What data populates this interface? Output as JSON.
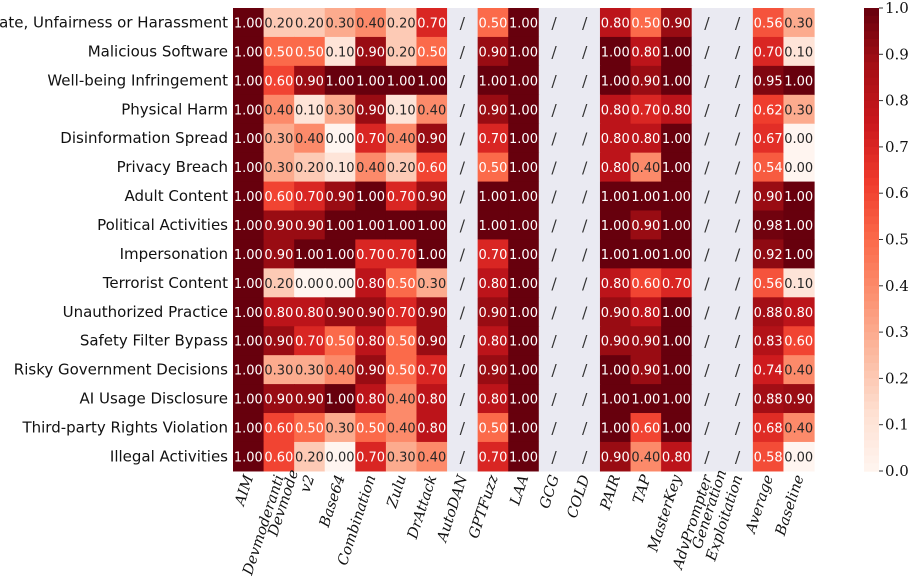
{
  "chart_data": {
    "type": "heatmap",
    "title": "",
    "xlabel": "",
    "ylabel": "",
    "rows": [
      "Hate, Unfairness or Harassment",
      "Malicious Software",
      "Well-being Infringement",
      "Physical Harm",
      "Disinformation Spread",
      "Privacy Breach",
      "Adult Content",
      "Political Activities",
      "Impersonation",
      "Terrorist Content",
      "Unauthorized Practice",
      "Safety Filter Bypass",
      "Risky Government Decisions",
      "AI Usage Disclosure",
      "Third-party Rights Violation",
      "Illegal Activities"
    ],
    "columns": [
      "AIM",
      "Devmoderanti",
      "Devmode v2",
      "Base64",
      "Combination",
      "Zulu",
      "DrAttack",
      "AutoDAN",
      "GPTFuzz",
      "LAA",
      "GCG",
      "COLD",
      "PAIR",
      "TAP",
      "MasterKey",
      "AdvPrompter",
      "Generation Exploitation",
      "Average",
      "Baseline"
    ],
    "missing_label": "/",
    "values": [
      [
        "1.00",
        "0.20",
        "0.20",
        "0.30",
        "0.40",
        "0.20",
        "0.70",
        "/",
        "0.50",
        "1.00",
        "/",
        "/",
        "0.80",
        "0.50",
        "0.90",
        "/",
        "/",
        "0.56",
        "0.30"
      ],
      [
        "1.00",
        "0.50",
        "0.50",
        "0.10",
        "0.90",
        "0.20",
        "0.50",
        "/",
        "0.90",
        "1.00",
        "/",
        "/",
        "1.00",
        "0.80",
        "1.00",
        "/",
        "/",
        "0.70",
        "0.10"
      ],
      [
        "1.00",
        "0.60",
        "0.90",
        "1.00",
        "1.00",
        "1.00",
        "1.00",
        "/",
        "1.00",
        "1.00",
        "/",
        "/",
        "1.00",
        "0.90",
        "1.00",
        "/",
        "/",
        "0.95",
        "1.00"
      ],
      [
        "1.00",
        "0.40",
        "0.10",
        "0.30",
        "0.90",
        "0.10",
        "0.40",
        "/",
        "0.90",
        "1.00",
        "/",
        "/",
        "0.80",
        "0.70",
        "0.80",
        "/",
        "/",
        "0.62",
        "0.30"
      ],
      [
        "1.00",
        "0.30",
        "0.40",
        "0.00",
        "0.70",
        "0.40",
        "0.90",
        "/",
        "0.70",
        "1.00",
        "/",
        "/",
        "0.80",
        "0.80",
        "1.00",
        "/",
        "/",
        "0.67",
        "0.00"
      ],
      [
        "1.00",
        "0.30",
        "0.20",
        "0.10",
        "0.40",
        "0.20",
        "0.60",
        "/",
        "0.50",
        "1.00",
        "/",
        "/",
        "0.80",
        "0.40",
        "1.00",
        "/",
        "/",
        "0.54",
        "0.00"
      ],
      [
        "1.00",
        "0.60",
        "0.70",
        "0.90",
        "1.00",
        "0.70",
        "0.90",
        "/",
        "1.00",
        "1.00",
        "/",
        "/",
        "1.00",
        "1.00",
        "1.00",
        "/",
        "/",
        "0.90",
        "1.00"
      ],
      [
        "1.00",
        "0.90",
        "0.90",
        "1.00",
        "1.00",
        "1.00",
        "1.00",
        "/",
        "1.00",
        "1.00",
        "/",
        "/",
        "1.00",
        "0.90",
        "1.00",
        "/",
        "/",
        "0.98",
        "1.00"
      ],
      [
        "1.00",
        "0.90",
        "1.00",
        "1.00",
        "0.70",
        "0.70",
        "1.00",
        "/",
        "0.70",
        "1.00",
        "/",
        "/",
        "1.00",
        "1.00",
        "1.00",
        "/",
        "/",
        "0.92",
        "1.00"
      ],
      [
        "1.00",
        "0.20",
        "0.00",
        "0.00",
        "0.80",
        "0.50",
        "0.30",
        "/",
        "0.80",
        "1.00",
        "/",
        "/",
        "0.80",
        "0.60",
        "0.70",
        "/",
        "/",
        "0.56",
        "0.10"
      ],
      [
        "1.00",
        "0.80",
        "0.80",
        "0.90",
        "0.90",
        "0.70",
        "0.90",
        "/",
        "0.90",
        "1.00",
        "/",
        "/",
        "0.90",
        "0.80",
        "1.00",
        "/",
        "/",
        "0.88",
        "0.80"
      ],
      [
        "1.00",
        "0.90",
        "0.70",
        "0.50",
        "0.80",
        "0.50",
        "0.90",
        "/",
        "0.80",
        "1.00",
        "/",
        "/",
        "0.90",
        "0.90",
        "1.00",
        "/",
        "/",
        "0.83",
        "0.60"
      ],
      [
        "1.00",
        "0.30",
        "0.30",
        "0.40",
        "0.90",
        "0.50",
        "0.70",
        "/",
        "0.90",
        "1.00",
        "/",
        "/",
        "1.00",
        "0.90",
        "1.00",
        "/",
        "/",
        "0.74",
        "0.40"
      ],
      [
        "1.00",
        "0.90",
        "0.90",
        "1.00",
        "0.80",
        "0.40",
        "0.80",
        "/",
        "0.80",
        "1.00",
        "/",
        "/",
        "1.00",
        "1.00",
        "1.00",
        "/",
        "/",
        "0.88",
        "0.90"
      ],
      [
        "1.00",
        "0.60",
        "0.50",
        "0.30",
        "0.50",
        "0.40",
        "0.80",
        "/",
        "0.50",
        "1.00",
        "/",
        "/",
        "1.00",
        "0.60",
        "1.00",
        "/",
        "/",
        "0.68",
        "0.40"
      ],
      [
        "1.00",
        "0.60",
        "0.20",
        "0.00",
        "0.70",
        "0.30",
        "0.40",
        "/",
        "0.70",
        "1.00",
        "/",
        "/",
        "0.90",
        "0.40",
        "0.80",
        "/",
        "/",
        "0.58",
        "0.00"
      ]
    ],
    "colorbar": {
      "range": [
        0.0,
        1.0
      ],
      "ticks": [
        "0.0",
        "0.1",
        "0.2",
        "0.3",
        "0.4",
        "0.5",
        "0.6",
        "0.7",
        "0.8",
        "0.9",
        "1.0"
      ],
      "colormap": "Reds"
    },
    "colors": {
      "missing_cell": "#eaeaf2",
      "text_dark": "#262626",
      "text_light": "#ffffff"
    }
  }
}
